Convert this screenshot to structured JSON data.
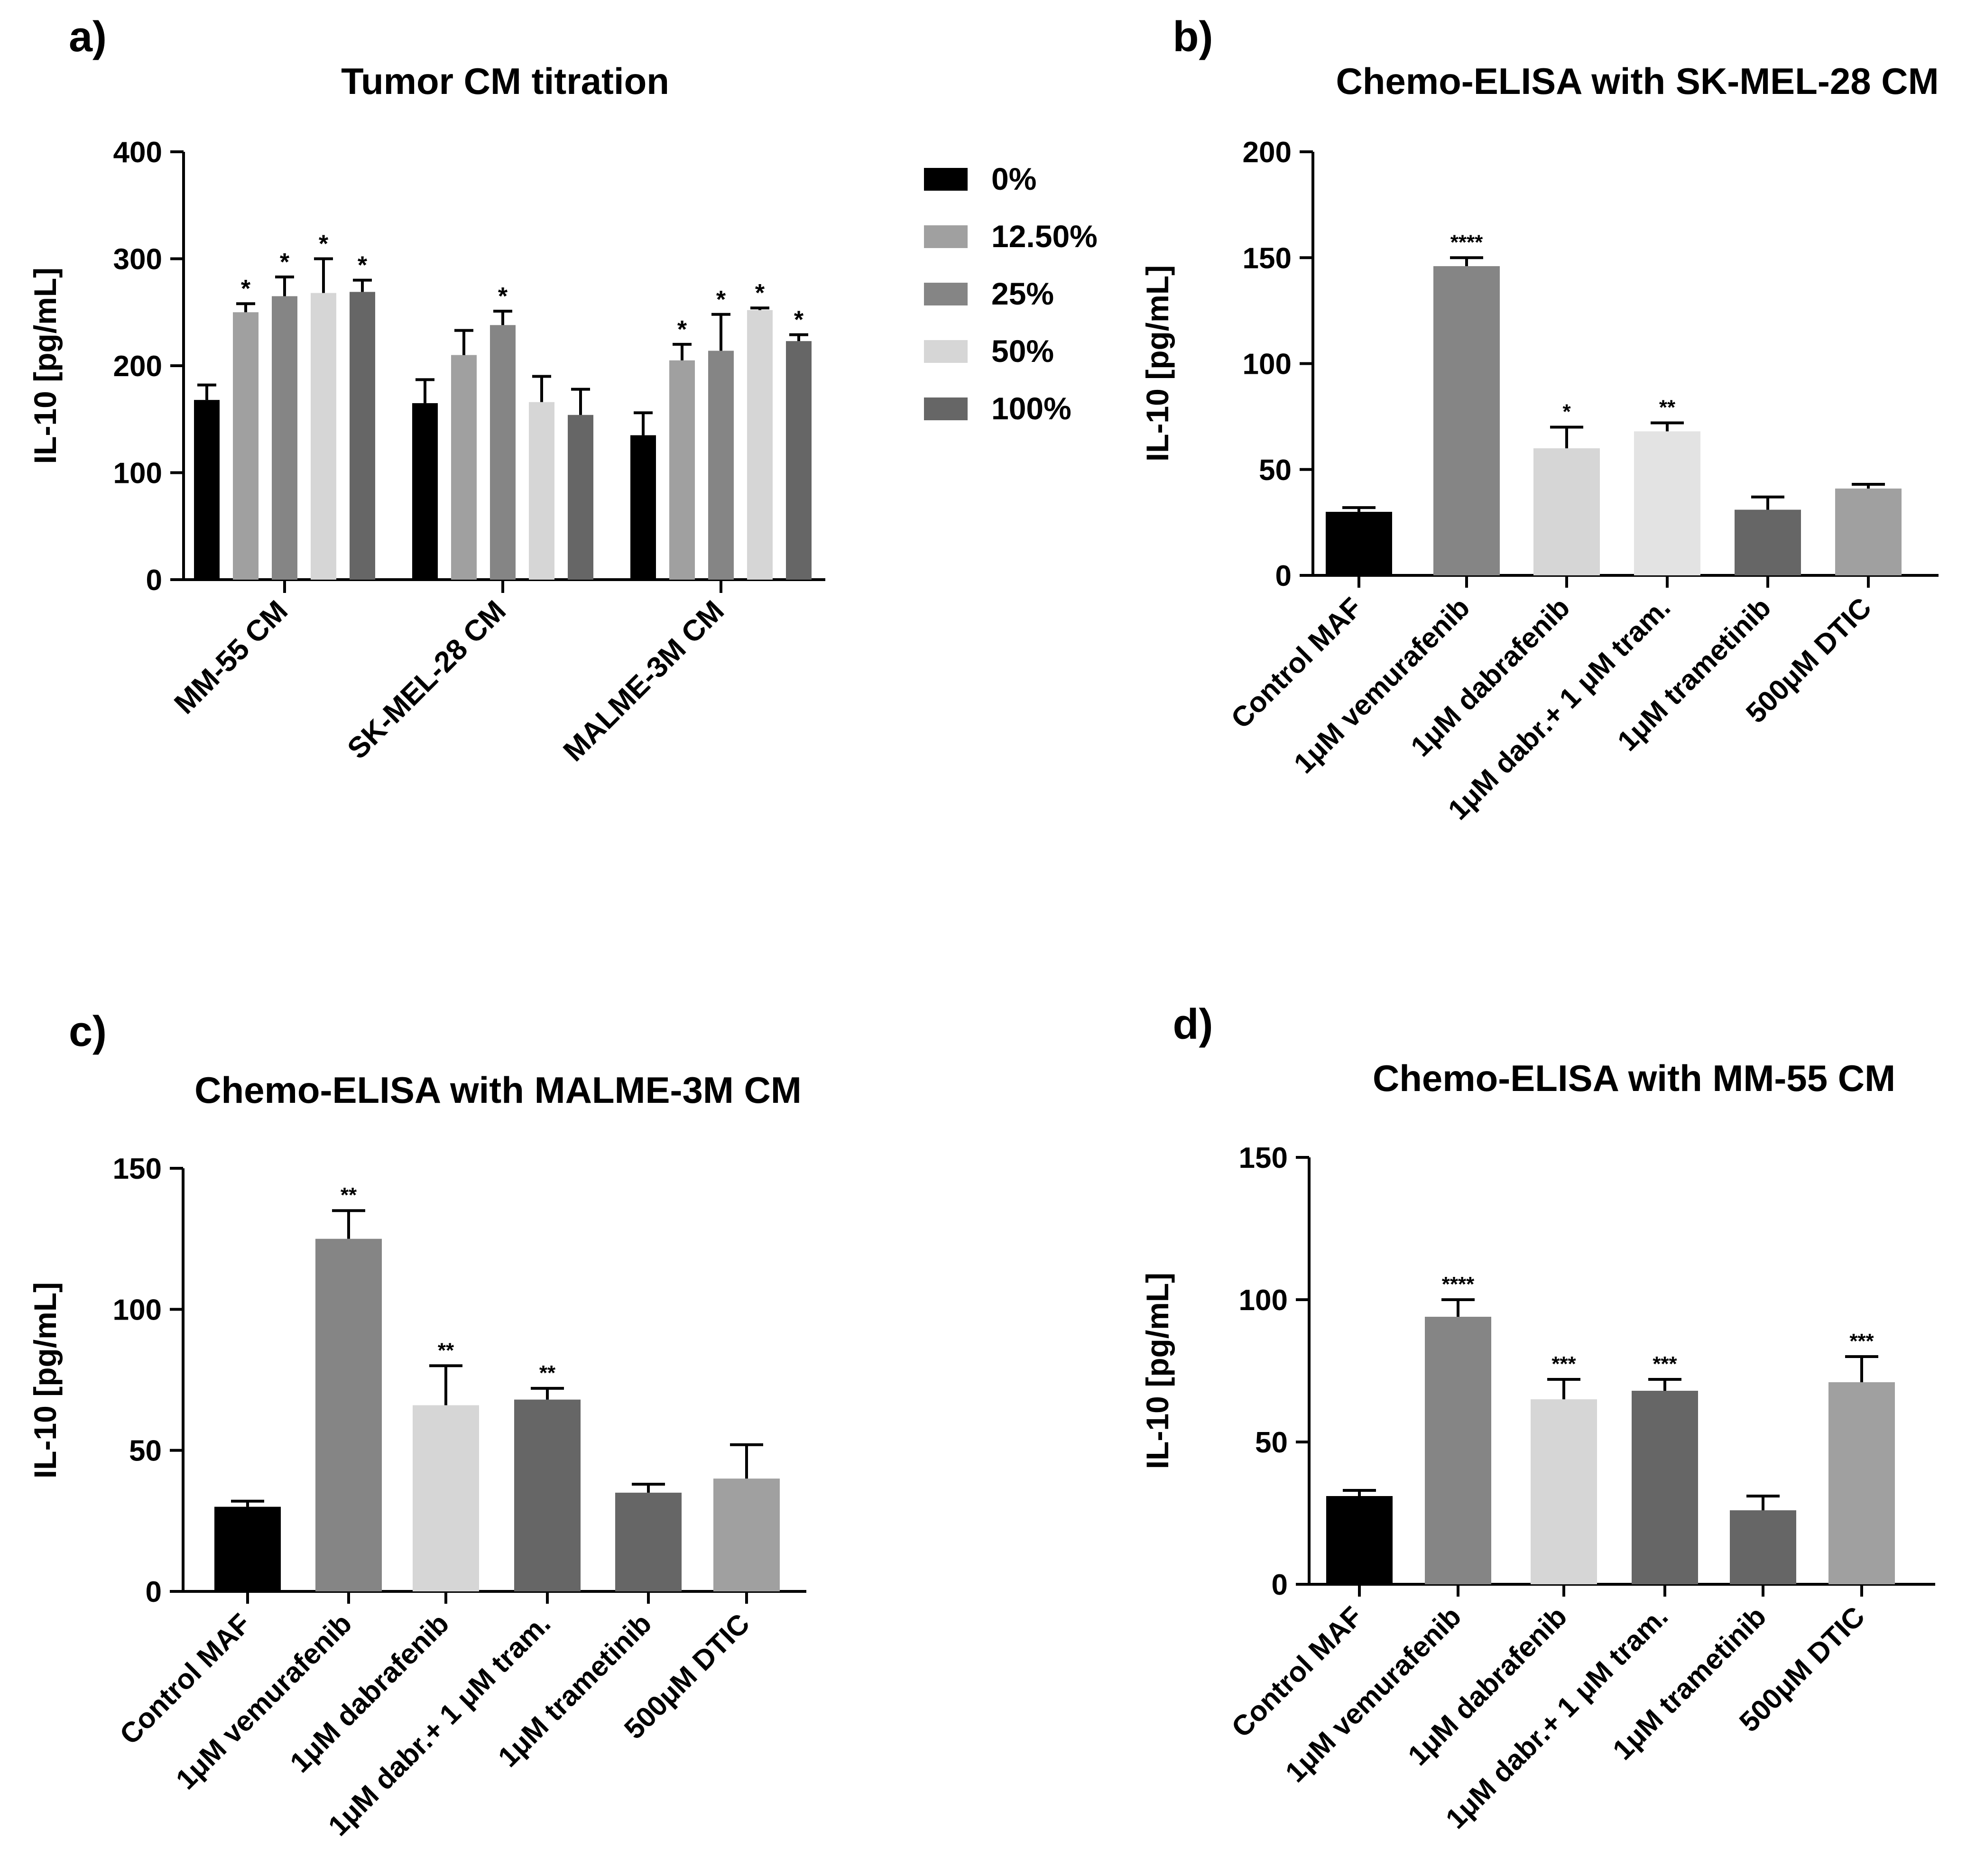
{
  "colors": {
    "black": "#000000",
    "gray_light": "#a0a0a0",
    "gray_mid": "#858585",
    "gray_pale": "#d6d6d6",
    "gray_dark": "#666666",
    "gray_paler": "#e3e3e3",
    "axis": "#000000"
  },
  "chart_data": [
    {
      "panel_label": "a)",
      "type": "bar",
      "title": "Tumor CM titration",
      "ylabel": "IL-10 [pg/mL]",
      "ylim": [
        0,
        400
      ],
      "yticks": [
        0,
        100,
        200,
        300,
        400
      ],
      "categories": [
        "MM-55 CM",
        "SK-MEL-28 CM",
        "MALME-3M CM"
      ],
      "legend": "right",
      "series": [
        {
          "name": "0%",
          "color": "#000000",
          "values": [
            168,
            165,
            135
          ],
          "errors": [
            14,
            22,
            21
          ],
          "sig": [
            "",
            "",
            ""
          ]
        },
        {
          "name": "12.50%",
          "color": "#a0a0a0",
          "values": [
            250,
            210,
            205
          ],
          "errors": [
            8,
            23,
            15
          ],
          "sig": [
            "*",
            "",
            "*"
          ]
        },
        {
          "name": "25%",
          "color": "#858585",
          "values": [
            265,
            238,
            214
          ],
          "errors": [
            18,
            13,
            34
          ],
          "sig": [
            "*",
            "*",
            "*"
          ]
        },
        {
          "name": "50%",
          "color": "#d6d6d6",
          "values": [
            268,
            166,
            252
          ],
          "errors": [
            32,
            24,
            2
          ],
          "sig": [
            "*",
            "",
            "*"
          ]
        },
        {
          "name": "100%",
          "color": "#666666",
          "values": [
            269,
            154,
            223
          ],
          "errors": [
            11,
            24,
            6
          ],
          "sig": [
            "*",
            "",
            "*"
          ]
        }
      ]
    },
    {
      "panel_label": "b)",
      "type": "bar",
      "title": "Chemo-ELISA with SK-MEL-28 CM",
      "ylabel": "IL-10 [pg/mL]",
      "ylim": [
        0,
        200
      ],
      "yticks": [
        0,
        50,
        100,
        150,
        200
      ],
      "categories": [
        "Control MAF",
        "1μM vemurafenib",
        "1μM dabrafenib",
        "1μM dabr.+ 1 μM tram.",
        "1μM trametinib",
        "500μM DTIC"
      ],
      "values": [
        30,
        146,
        60,
        68,
        31,
        41
      ],
      "errors": [
        2,
        4,
        10,
        4,
        6,
        2
      ],
      "sig": [
        "",
        "****",
        "*",
        "**",
        "",
        ""
      ],
      "colors": [
        "#000000",
        "#858585",
        "#d6d6d6",
        "#e3e3e3",
        "#666666",
        "#a0a0a0"
      ]
    },
    {
      "panel_label": "c)",
      "type": "bar",
      "title": "Chemo-ELISA with MALME-3M CM",
      "ylabel": "IL-10 [pg/mL]",
      "ylim": [
        0,
        150
      ],
      "yticks": [
        0,
        50,
        100,
        150
      ],
      "categories": [
        "Control MAF",
        "1μM vemurafenib",
        "1μM dabrafenib",
        "1μM dabr.+ 1 μM tram.",
        "1μM trametinib",
        "500μM DTIC"
      ],
      "values": [
        30,
        125,
        66,
        68,
        35,
        40
      ],
      "errors": [
        2,
        10,
        14,
        4,
        3,
        12
      ],
      "sig": [
        "",
        "**",
        "**",
        "**",
        "",
        ""
      ],
      "colors": [
        "#000000",
        "#858585",
        "#d6d6d6",
        "#666666",
        "#666666",
        "#a0a0a0"
      ]
    },
    {
      "panel_label": "d)",
      "type": "bar",
      "title": "Chemo-ELISA with MM-55 CM",
      "ylabel": "IL-10 [pg/mL]",
      "ylim": [
        0,
        150
      ],
      "yticks": [
        0,
        50,
        100,
        150
      ],
      "categories": [
        "Control MAF",
        "1μM vemurafenib",
        "1μM dabrafenib",
        "1μM dabr.+ 1 μM tram.",
        "1μM trametinib",
        "500μM DTIC"
      ],
      "values": [
        31,
        94,
        65,
        68,
        26,
        71
      ],
      "errors": [
        2,
        6,
        7,
        4,
        5,
        9
      ],
      "sig": [
        "",
        "****",
        "***",
        "***",
        "",
        "***"
      ],
      "colors": [
        "#000000",
        "#858585",
        "#d6d6d6",
        "#666666",
        "#666666",
        "#a0a0a0"
      ]
    }
  ]
}
